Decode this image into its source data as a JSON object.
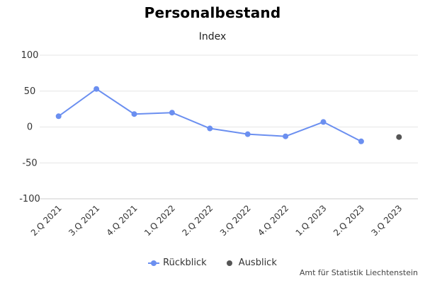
{
  "chart_data": {
    "type": "line",
    "title": "Personalbestand",
    "subtitle": "Index",
    "categories": [
      "2.Q 2021",
      "3.Q 2021",
      "4.Q 2021",
      "1.Q 2022",
      "2.Q 2022",
      "3.Q 2022",
      "4.Q 2022",
      "1.Q 2023",
      "2.Q 2023",
      "3.Q 2023"
    ],
    "series": [
      {
        "name": "Rückblick",
        "color": "#6b8ff0",
        "values": [
          15,
          53,
          18,
          20,
          -2,
          -10,
          -13,
          7,
          -20,
          null
        ]
      },
      {
        "name": "Ausblick",
        "color": "#555555",
        "values": [
          null,
          null,
          null,
          null,
          null,
          null,
          null,
          null,
          null,
          -14
        ]
      }
    ],
    "yticks": [
      100,
      50,
      0,
      -50,
      -100
    ],
    "ylim": [
      -100,
      100
    ],
    "grid": true,
    "legend_position": "bottom-center",
    "credits": "Amt für Statistik Liechtenstein"
  }
}
